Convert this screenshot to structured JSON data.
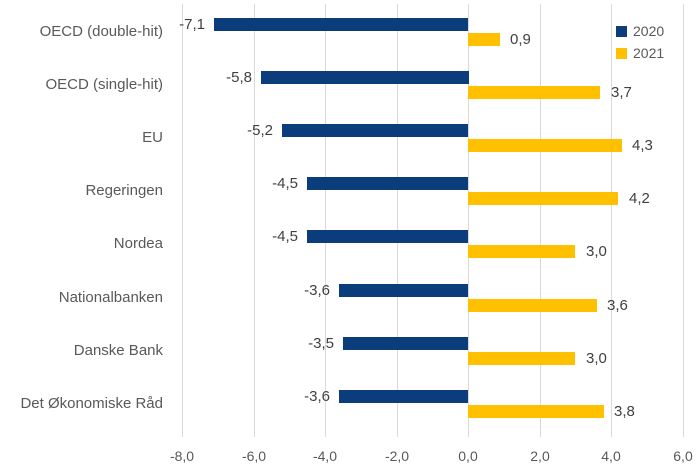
{
  "chart_data": {
    "type": "bar",
    "orientation": "horizontal",
    "title": "",
    "xlabel": "",
    "ylabel": "",
    "categories": [
      "OECD (double-hit)",
      "OECD (single-hit)",
      "EU",
      "Regeringen",
      "Nordea",
      "Nationalbanken",
      "Danske Bank",
      "Det Økonomiske Råd"
    ],
    "series": [
      {
        "name": "2020",
        "color": "#0b3d7c",
        "values": [
          -7.1,
          -5.8,
          -5.2,
          -4.5,
          -4.5,
          -3.6,
          -3.5,
          -3.6
        ],
        "labels": [
          "-7,1",
          "-5,8",
          "-5,2",
          "-4,5",
          "-4,5",
          "-3,6",
          "-3,5",
          "-3,6"
        ]
      },
      {
        "name": "2021",
        "color": "#ffc000",
        "values": [
          0.9,
          3.7,
          4.3,
          4.2,
          3.0,
          3.6,
          3.0,
          3.8
        ],
        "labels": [
          "0,9",
          "3,7",
          "4,3",
          "4,2",
          "3,0",
          "3,6",
          "3,0",
          "3,8"
        ]
      }
    ],
    "xlim": [
      -8,
      6
    ],
    "x_ticks": [
      {
        "value": -8,
        "label": "-8,0"
      },
      {
        "value": -6,
        "label": "-6,0"
      },
      {
        "value": -4,
        "label": "-4,0"
      },
      {
        "value": -2,
        "label": "-2,0"
      },
      {
        "value": 0,
        "label": "0,0"
      },
      {
        "value": 2,
        "label": "2,0"
      },
      {
        "value": 4,
        "label": "4,0"
      },
      {
        "value": 6,
        "label": "6,0"
      }
    ],
    "grid": "vertical",
    "legend_position": "top-right"
  },
  "colors": {
    "background": "#ffffff",
    "gridline": "#d9d9d9",
    "category_text": "#595959",
    "tick_text": "#595959",
    "value_text": "#404040",
    "series_2020": "#0b3d7c",
    "series_2021": "#ffc000"
  }
}
